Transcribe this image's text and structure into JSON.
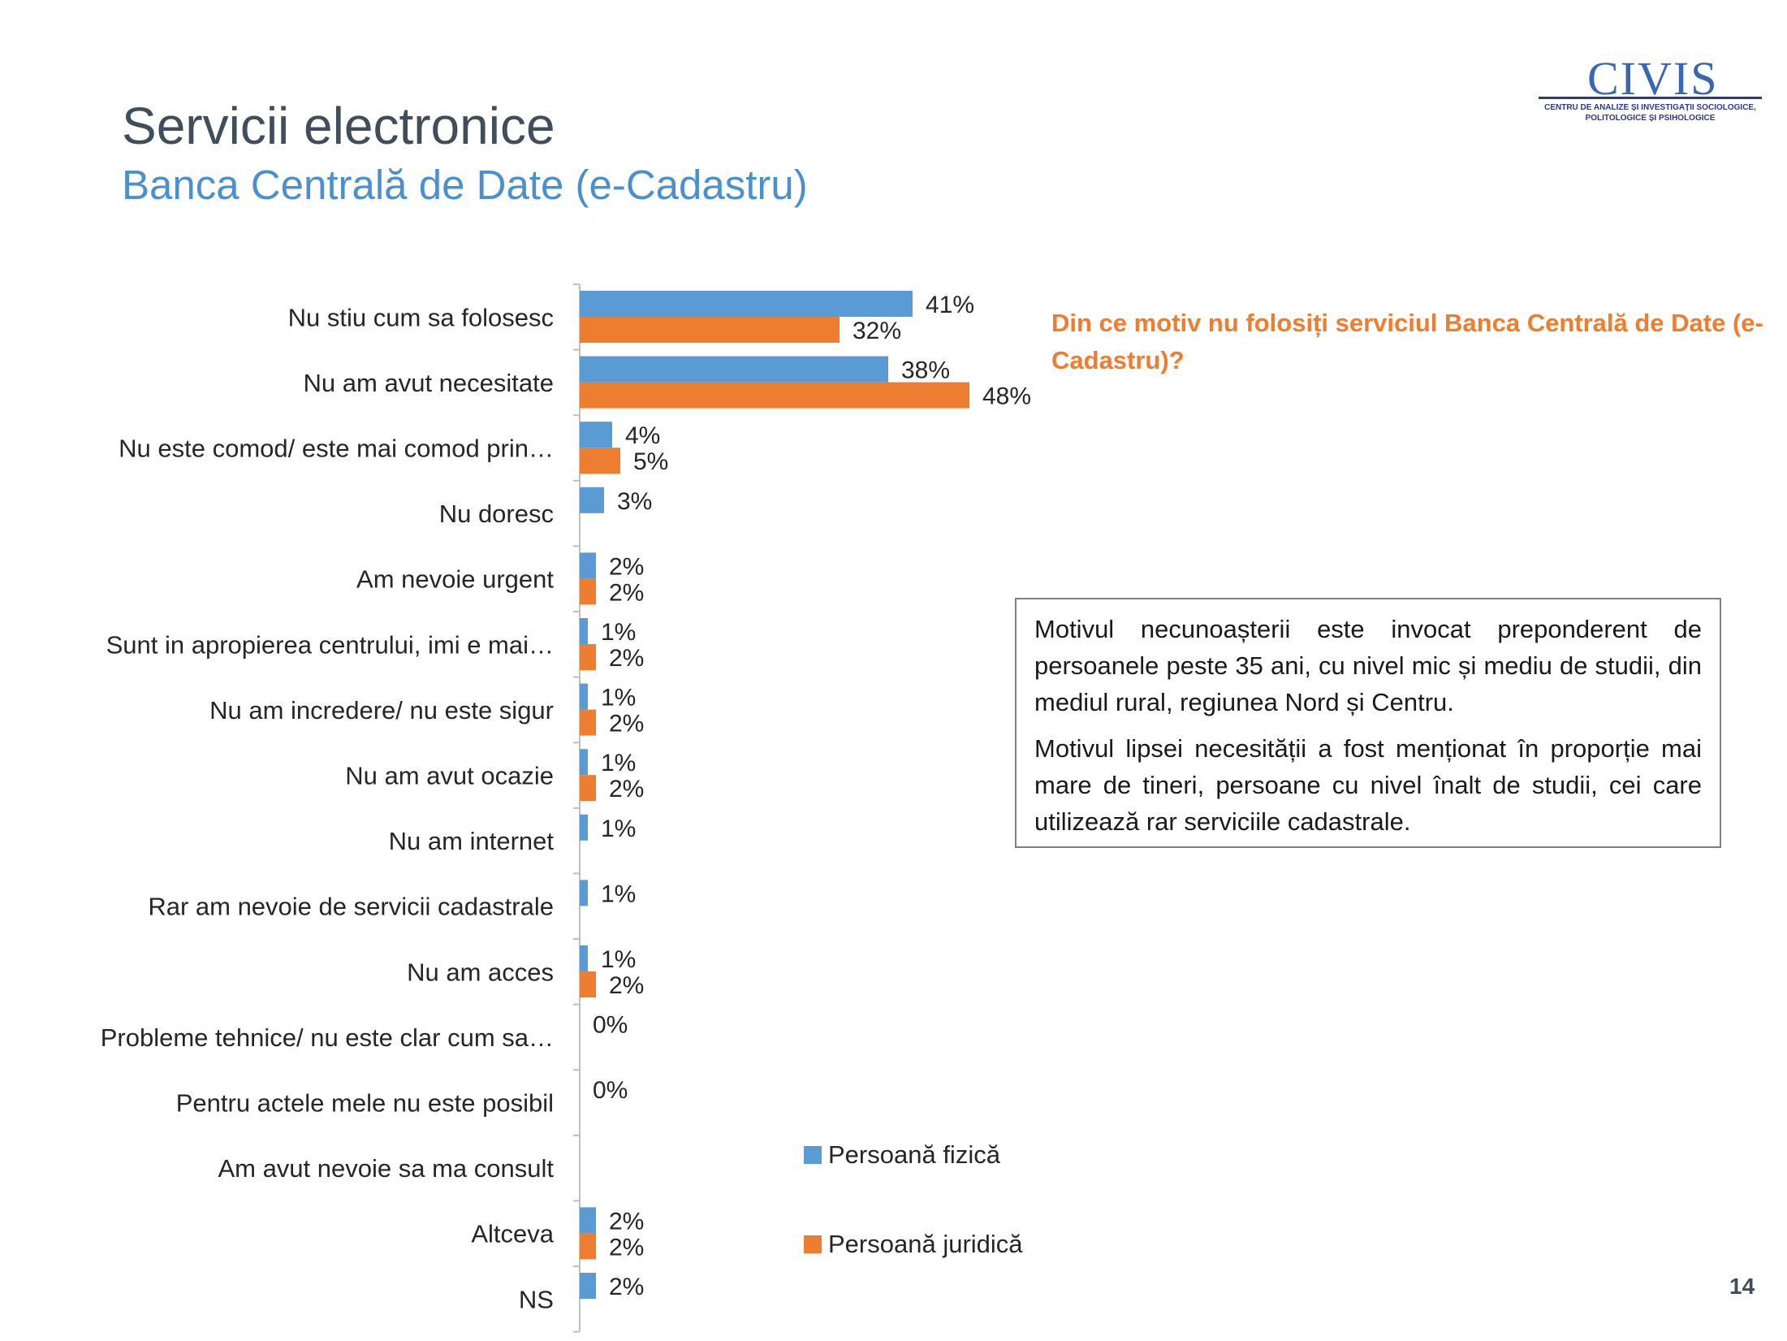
{
  "header": {
    "title": "Servicii electronice",
    "subtitle": "Banca Centrală de Date (e-Cadastru)"
  },
  "logo": {
    "name": "CIVIS",
    "tagline_line1": "CENTRU DE ANALIZE ȘI INVESTIGAȚII SOCIOLOGICE,",
    "tagline_line2": "POLITOLOGICE ȘI PSIHOLOGICE"
  },
  "question": "Din ce motiv nu folosiți serviciul Banca Centrală de Date (e-Cadastru)?",
  "note": {
    "paragraph1": "Motivul necunoașterii este invocat preponderent de persoanele peste 35 ani, cu nivel mic și mediu de studii, din mediul rural, regiunea Nord și Centru.",
    "paragraph2": "Motivul lipsei necesității a fost menționat în proporție mai mare de tineri, persoane cu nivel înalt de studii, cei care utilizează rar serviciile cadastrale."
  },
  "page_number": "14",
  "colors": {
    "persoana_fizica": "#5b9bd5",
    "persoana_juridica": "#ed7d31",
    "question": "#ed7d31"
  },
  "legend": [
    {
      "label": "Persoană fizică",
      "color": "#5b9bd5"
    },
    {
      "label": "Persoană juridică",
      "color": "#ed7d31"
    }
  ],
  "chart_data": {
    "type": "bar",
    "orientation": "horizontal",
    "categories": [
      "Nu stiu cum sa folosesc",
      "Nu am avut necesitate",
      "Nu este comod/ este mai comod prin…",
      "Nu doresc",
      "Am nevoie urgent",
      "Sunt in apropierea centrului, imi e mai…",
      "Nu am incredere/ nu este sigur",
      "Nu am avut ocazie",
      "Nu am internet",
      "Rar am nevoie de servicii cadastrale",
      "Nu am acces",
      "Probleme tehnice/ nu este clar cum sa…",
      "Pentru actele mele nu este posibil",
      "Am avut nevoie sa ma consult",
      "Altceva",
      "NS"
    ],
    "series": [
      {
        "name": "Persoană fizică",
        "values": [
          41,
          38,
          4,
          3,
          2,
          1,
          1,
          1,
          1,
          1,
          1,
          0,
          0,
          null,
          2,
          2
        ]
      },
      {
        "name": "Persoană juridică",
        "values": [
          32,
          48,
          5,
          null,
          2,
          2,
          2,
          2,
          null,
          null,
          2,
          null,
          null,
          null,
          2,
          null
        ]
      }
    ],
    "value_suffix": "%",
    "legend_position": "bottom-right",
    "grid": false
  }
}
